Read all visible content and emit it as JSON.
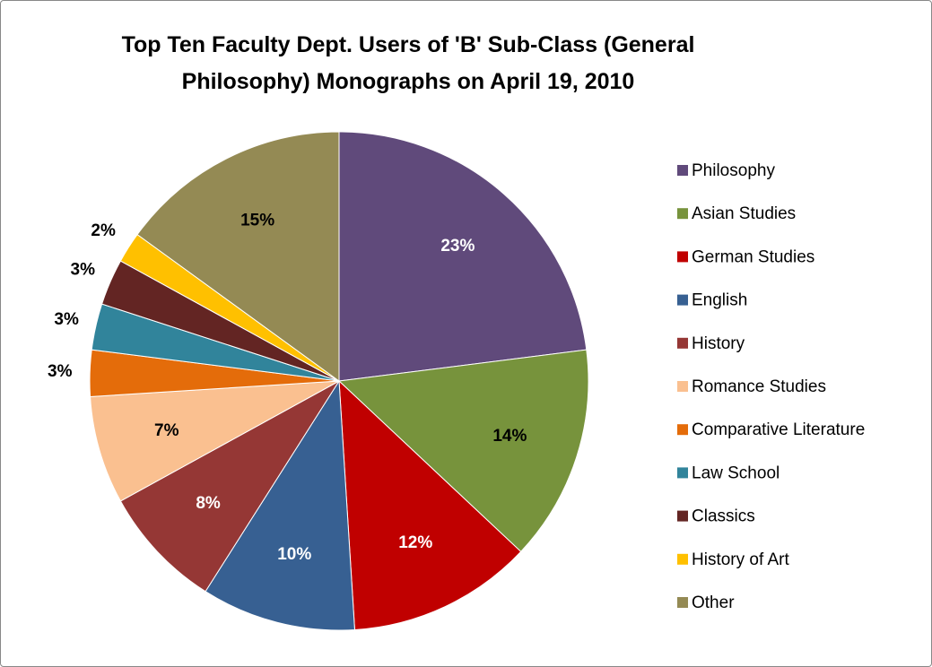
{
  "chart_data": {
    "type": "pie",
    "title": "Top Ten Faculty Dept. Users of 'B' Sub-Class (General Philosophy) Monographs on April 19, 2010",
    "categories": [
      "Philosophy",
      "Asian Studies",
      "German Studies",
      "English",
      "History",
      "Romance Studies",
      "Comparative Literature",
      "Law School",
      "Classics",
      "History of Art",
      "Other"
    ],
    "values": [
      23,
      14,
      12,
      10,
      8,
      7,
      3,
      3,
      3,
      2,
      15
    ],
    "value_labels": [
      "23%",
      "14%",
      "12%",
      "10%",
      "8%",
      "7%",
      "3%",
      "3%",
      "3%",
      "2%",
      "15%"
    ],
    "colors": [
      "#604a7b",
      "#77933c",
      "#c00000",
      "#376092",
      "#953735",
      "#fac090",
      "#e46c0a",
      "#31849b",
      "#632523",
      "#ffc000",
      "#948a54"
    ],
    "legend": "right"
  }
}
